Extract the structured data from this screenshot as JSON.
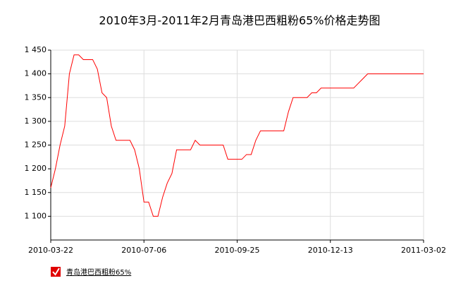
{
  "chart_data": {
    "type": "line",
    "title": "2010年3月-2011年2月青岛港巴西粗粉65%价格走势图",
    "categories": [
      "2010-03-22",
      null,
      null,
      null,
      null,
      null,
      null,
      null,
      null,
      null,
      null,
      null,
      null,
      null,
      null,
      null,
      null,
      null,
      null,
      null,
      "2010-07-06",
      null,
      null,
      null,
      null,
      null,
      null,
      null,
      null,
      null,
      null,
      null,
      null,
      null,
      null,
      null,
      null,
      null,
      null,
      null,
      "2010-09-25",
      null,
      null,
      null,
      null,
      null,
      null,
      null,
      null,
      null,
      null,
      null,
      null,
      null,
      null,
      null,
      null,
      null,
      null,
      null,
      "2010-12-13",
      null,
      null,
      null,
      null,
      null,
      null,
      null,
      null,
      null,
      null,
      null,
      null,
      null,
      null,
      null,
      null,
      null,
      null,
      null,
      "2011-03-02"
    ],
    "series": [
      {
        "name": "青岛港巴西粗粉65%",
        "color": "#ff0000",
        "values": [
          1160,
          1200,
          1250,
          1290,
          1400,
          1440,
          1440,
          1430,
          1430,
          1430,
          1410,
          1360,
          1350,
          1290,
          1260,
          1260,
          1260,
          1260,
          1240,
          1200,
          1130,
          1130,
          1100,
          1100,
          1140,
          1170,
          1190,
          1240,
          1240,
          1240,
          1240,
          1260,
          1250,
          1250,
          1250,
          1250,
          1250,
          1250,
          1220,
          1220,
          1220,
          1220,
          1230,
          1230,
          1260,
          1280,
          1280,
          1280,
          1280,
          1280,
          1280,
          1320,
          1350,
          1350,
          1350,
          1350,
          1360,
          1360,
          1370,
          1370,
          1370,
          1370,
          1370,
          1370,
          1370,
          1370,
          1380,
          1390,
          1400,
          1400,
          1400,
          1400,
          1400,
          1400,
          1400,
          1400,
          1400,
          1400,
          1400,
          1400,
          1400
        ]
      }
    ],
    "ylim": [
      1050,
      1450
    ],
    "yticks": [
      {
        "value": 1100,
        "label": "1 100"
      },
      {
        "value": 1150,
        "label": "1 150"
      },
      {
        "value": 1200,
        "label": "1 200"
      },
      {
        "value": 1250,
        "label": "1 250"
      },
      {
        "value": 1300,
        "label": "1 300"
      },
      {
        "value": 1350,
        "label": "1 350"
      },
      {
        "value": 1400,
        "label": "1 400"
      },
      {
        "value": 1450,
        "label": "1 450"
      }
    ],
    "grid": true
  }
}
